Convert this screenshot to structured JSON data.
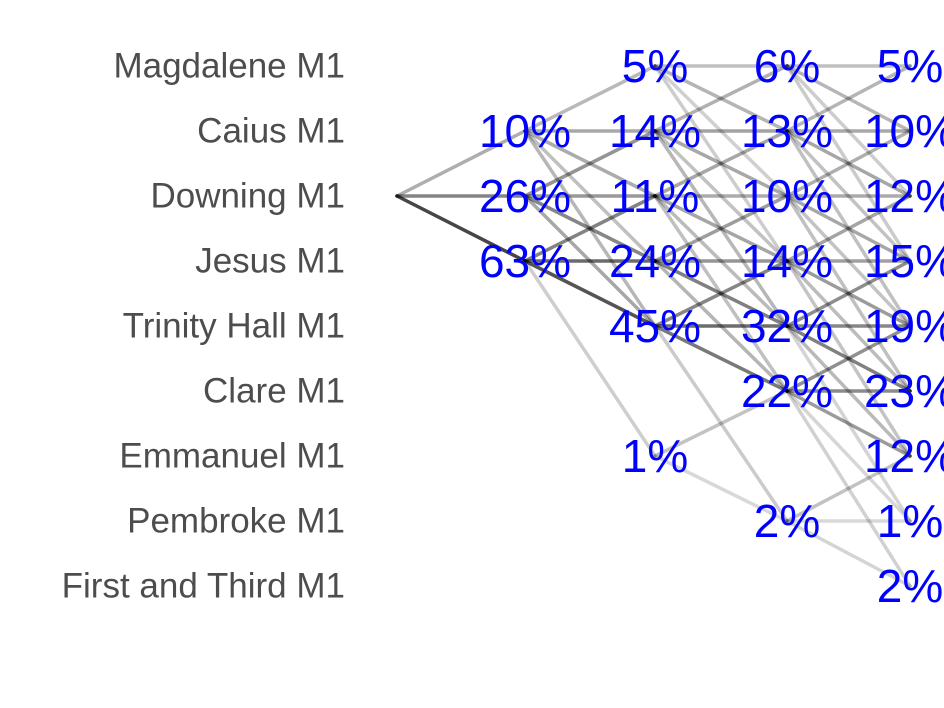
{
  "chart_data": {
    "type": "line",
    "crews": [
      "Magdalene M1",
      "Caius M1",
      "Downing M1",
      "Jesus M1",
      "Trinity Hall M1",
      "Clare M1",
      "Emmanuel M1",
      "Pembroke M1",
      "First and Third M1"
    ],
    "start_crew": "Downing M1",
    "days": [
      {
        "probs": [
          0,
          10,
          26,
          63,
          0,
          0,
          0,
          0,
          0
        ]
      },
      {
        "probs": [
          5,
          14,
          11,
          24,
          45,
          0,
          1,
          0,
          0
        ]
      },
      {
        "probs": [
          6,
          13,
          10,
          14,
          32,
          22,
          0,
          2,
          0
        ]
      },
      {
        "probs": [
          5,
          10,
          12,
          15,
          19,
          23,
          12,
          1,
          2
        ]
      }
    ],
    "label_colors": {
      "crew": "#4d4d4d",
      "probability": "#0000ff",
      "path": "#000000"
    }
  }
}
